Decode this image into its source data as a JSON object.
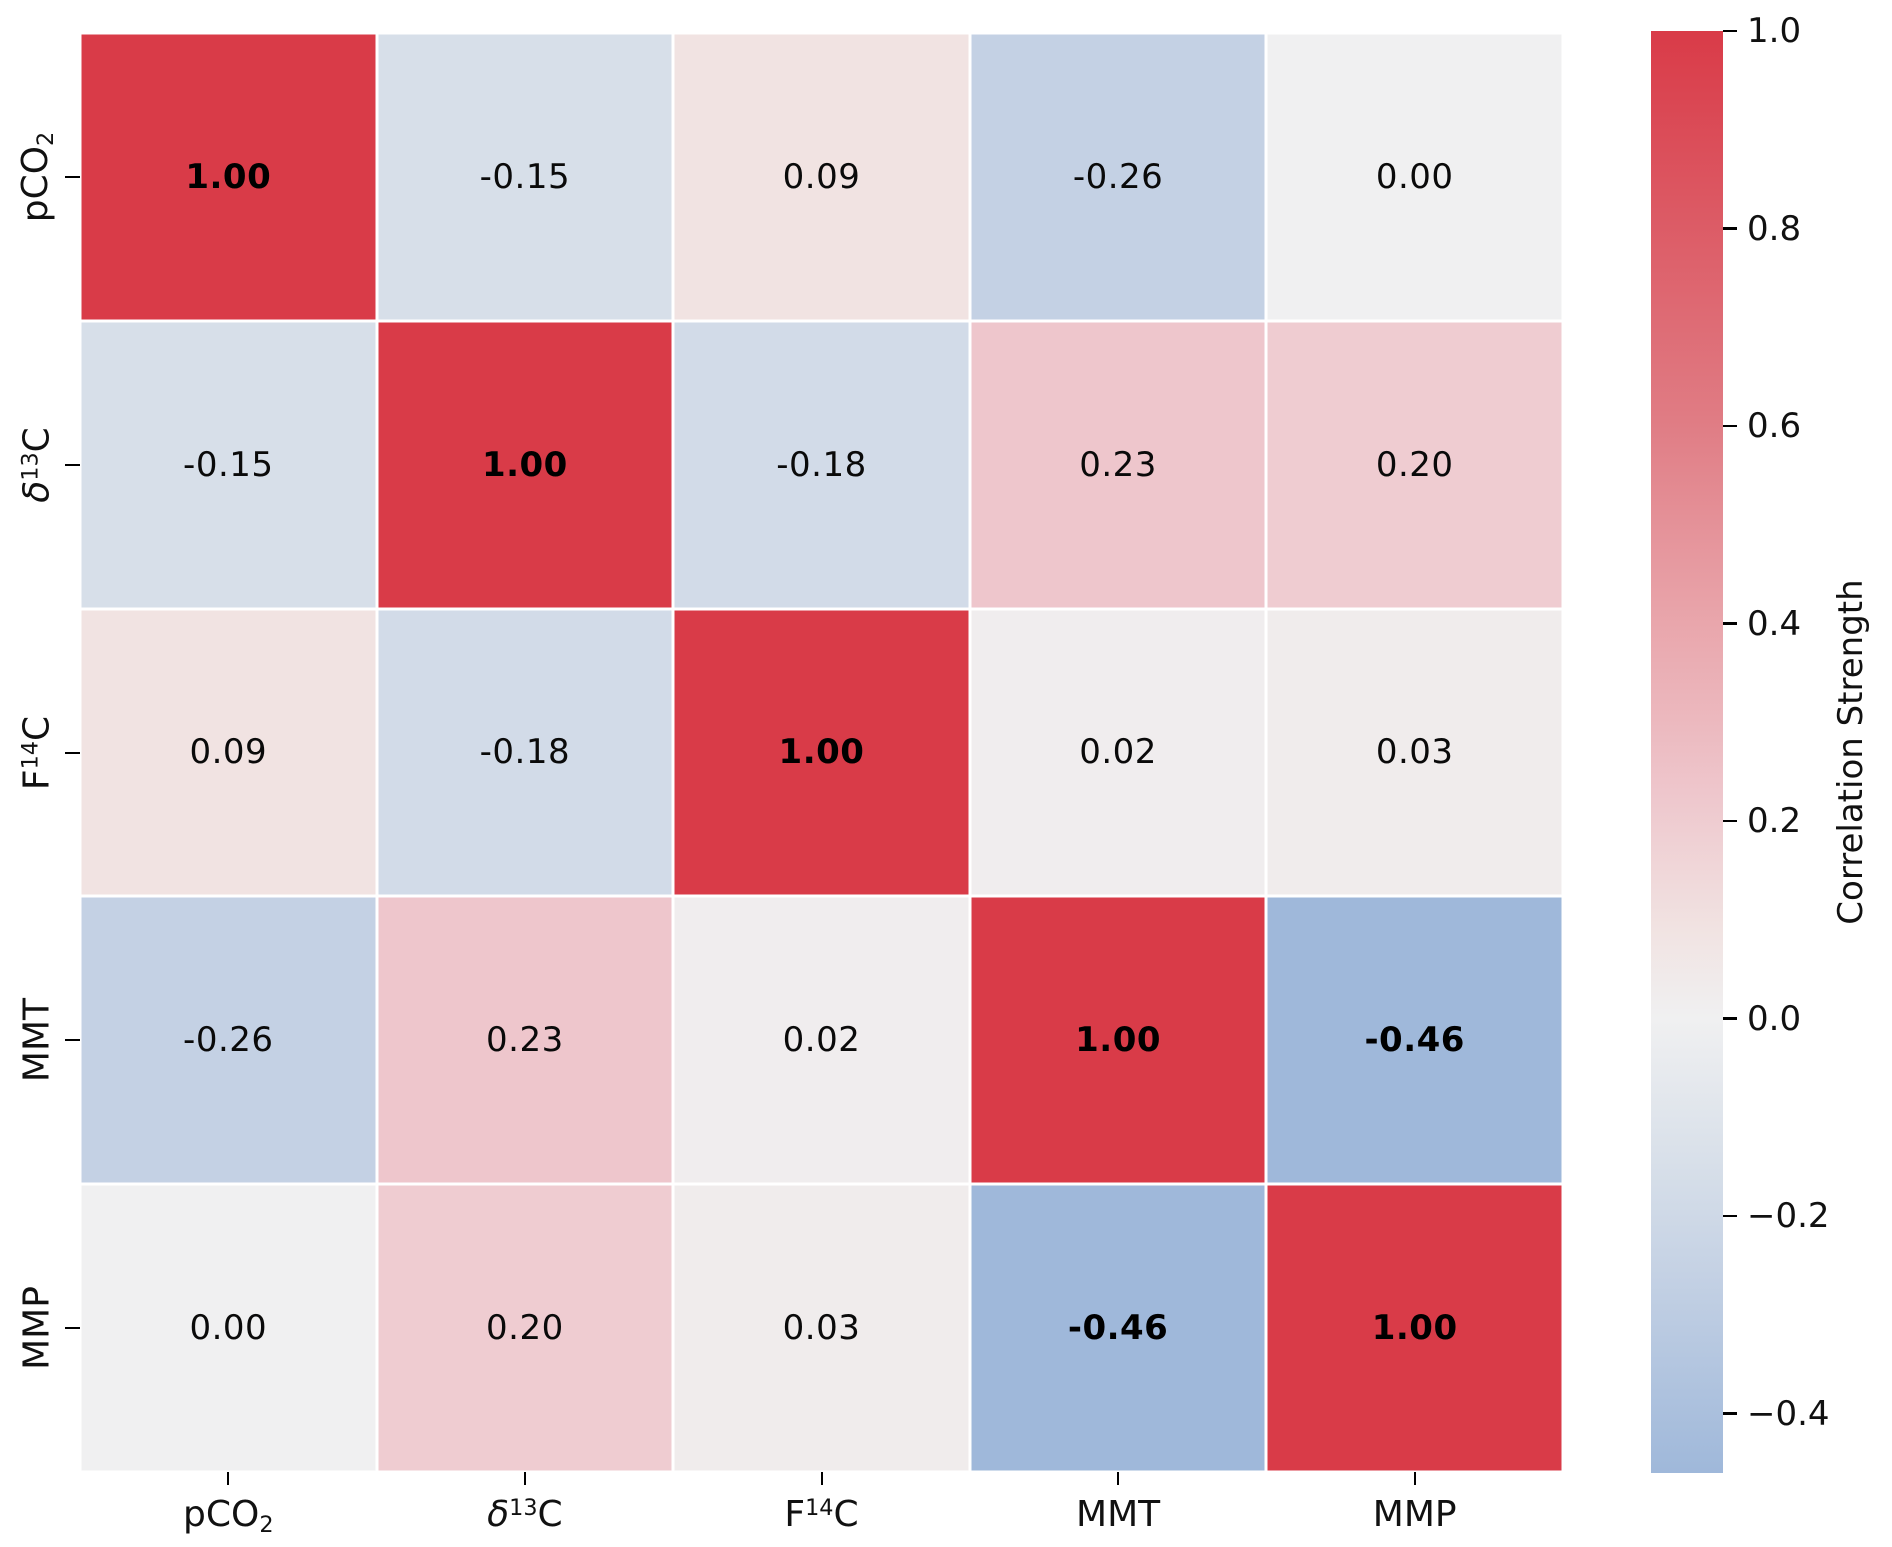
{
  "figure": {
    "background": "#ffffff",
    "text_color": "#111111",
    "grid_line_color": "#ffffff"
  },
  "chart_data": {
    "type": "heatmap",
    "title": "",
    "variables": [
      "pCO₂",
      "δ¹³C",
      "F¹⁴C",
      "MMT",
      "MMP"
    ],
    "matrix": [
      [
        1.0,
        -0.15,
        0.09,
        -0.26,
        0.0
      ],
      [
        -0.15,
        1.0,
        -0.18,
        0.23,
        0.2
      ],
      [
        0.09,
        -0.18,
        1.0,
        0.02,
        0.03
      ],
      [
        -0.26,
        0.23,
        0.02,
        1.0,
        -0.46
      ],
      [
        0.0,
        0.2,
        0.03,
        -0.46,
        1.0
      ]
    ],
    "annotation_format": ".2f",
    "bold_threshold": 0.4,
    "vmin": -0.46,
    "vmax": 1.0,
    "axis": {
      "x_labels": [
        {
          "id": "pCO2",
          "segments": [
            {
              "t": "pCO"
            },
            {
              "t": "2",
              "s": "sub"
            }
          ]
        },
        {
          "id": "d13C",
          "segments": [
            {
              "t": "δ",
              "s": "i"
            },
            {
              "t": "13",
              "s": "sup"
            },
            {
              "t": "C"
            }
          ]
        },
        {
          "id": "F14C",
          "segments": [
            {
              "t": "F"
            },
            {
              "t": "14",
              "s": "sup"
            },
            {
              "t": "C"
            }
          ]
        },
        {
          "id": "MMT",
          "segments": [
            {
              "t": "MMT"
            }
          ]
        },
        {
          "id": "MMP",
          "segments": [
            {
              "t": "MMP"
            }
          ]
        }
      ],
      "y_labels": [
        {
          "id": "pCO2",
          "segments": [
            {
              "t": "pCO"
            },
            {
              "t": "2",
              "s": "sub"
            }
          ]
        },
        {
          "id": "d13C",
          "segments": [
            {
              "t": "δ",
              "s": "i"
            },
            {
              "t": "13",
              "s": "sup"
            },
            {
              "t": "C"
            }
          ]
        },
        {
          "id": "F14C",
          "segments": [
            {
              "t": "F"
            },
            {
              "t": "14",
              "s": "sup"
            },
            {
              "t": "C"
            }
          ]
        },
        {
          "id": "MMT",
          "segments": [
            {
              "t": "MMT"
            }
          ]
        },
        {
          "id": "MMP",
          "segments": [
            {
              "t": "MMP"
            }
          ]
        }
      ]
    },
    "colorbar": {
      "label": "Correlation Strength",
      "tick_values": [
        1.0,
        0.8,
        0.6,
        0.4,
        0.2,
        0.0,
        -0.2,
        -0.4
      ],
      "tick_labels": [
        "1.0",
        "0.8",
        "0.6",
        "0.4",
        "0.2",
        "0.0",
        "−0.2",
        "−0.4"
      ]
    },
    "colormap_anchors": [
      {
        "v": -0.46,
        "c": "#9fb8da"
      },
      {
        "v": -0.26,
        "c": "#c4d1e4"
      },
      {
        "v": -0.15,
        "c": "#d7dfe9"
      },
      {
        "v": 0.0,
        "c": "#f0f0f1"
      },
      {
        "v": 0.09,
        "c": "#f1e3e2"
      },
      {
        "v": 0.23,
        "c": "#eec6cc"
      },
      {
        "v": 0.4,
        "c": "#e9a6ac"
      },
      {
        "v": 0.6,
        "c": "#e07d85"
      },
      {
        "v": 1.0,
        "c": "#d93b48"
      }
    ]
  }
}
